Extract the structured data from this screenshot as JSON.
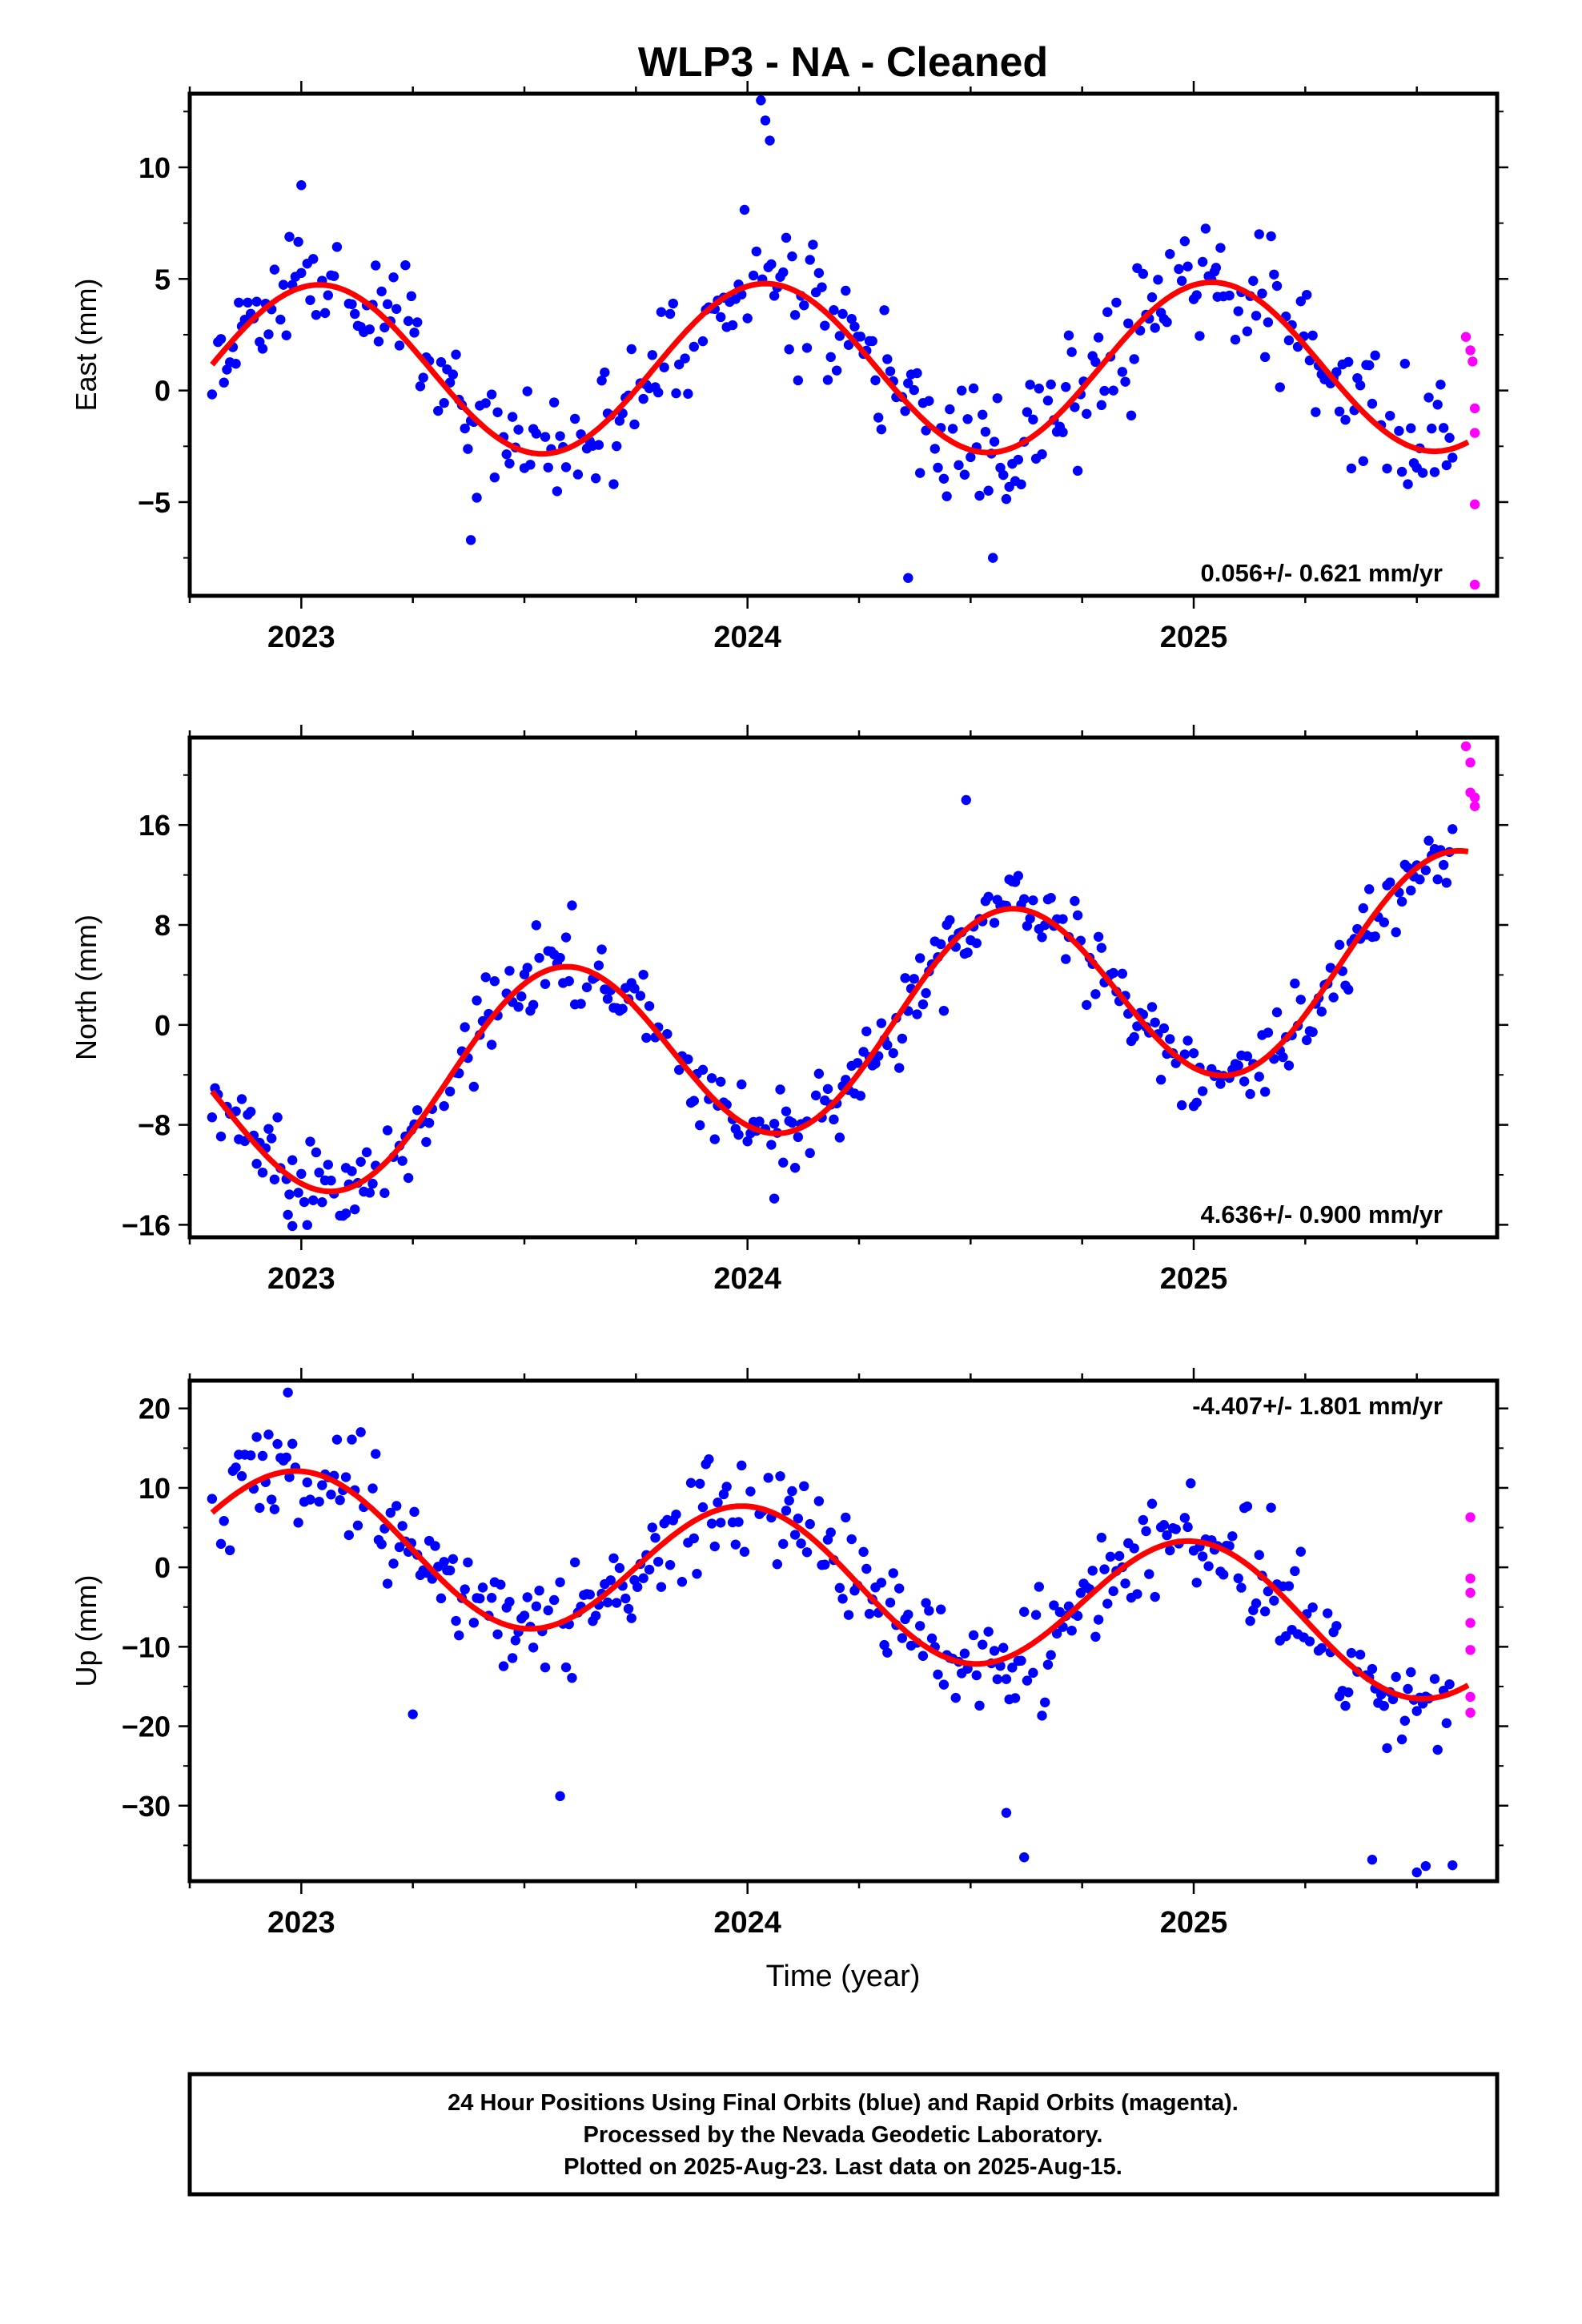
{
  "title": "WLP3  - NA - Cleaned",
  "x_axis_label": "Time (year)",
  "colors": {
    "final_orbits": "#0000ff",
    "rapid_orbits": "#ff00ff",
    "model_fit": "#ff0000",
    "frame": "#000000"
  },
  "footer": {
    "line1": "24 Hour Positions Using Final Orbits (blue) and Rapid Orbits (magenta).",
    "line2": "Processed by the Nevada Geodetic Laboratory.",
    "line3": "Plotted on 2025-Aug-23. Last data on 2025-Aug-15."
  },
  "chart_data": [
    {
      "type": "scatter",
      "ylabel": "East (mm)",
      "rate_label": "0.056+/- 0.621 mm/yr",
      "rate_position": "bottom-right",
      "xlim": [
        2022.75,
        2025.68
      ],
      "ylim": [
        -9.2,
        13.3
      ],
      "x_ticks": [
        2023,
        2024,
        2025
      ],
      "y_ticks": [
        -5,
        0,
        5,
        10
      ],
      "model": {
        "amplitude": 3.8,
        "phase_peak": 0.04,
        "offset": 1.0,
        "rate": 0.056,
        "ref_year": 2024.2
      },
      "samples_per_year": 150,
      "noise": 1.4,
      "seed": 11,
      "outliers": [
        [
          2023.0,
          9.2
        ],
        [
          2024.03,
          13.0
        ],
        [
          2024.04,
          12.1
        ],
        [
          2024.05,
          11.2
        ],
        [
          2024.36,
          -8.4
        ],
        [
          2024.55,
          -7.5
        ],
        [
          2023.38,
          -6.7
        ],
        [
          2025.05,
          5.5
        ]
      ],
      "rapid_points": [
        [
          2025.61,
          2.4
        ],
        [
          2025.62,
          1.8
        ],
        [
          2025.625,
          1.3
        ],
        [
          2025.63,
          -0.8
        ],
        [
          2025.63,
          -1.9
        ],
        [
          2025.63,
          -5.1
        ],
        [
          2025.63,
          -8.7
        ]
      ]
    },
    {
      "type": "scatter",
      "ylabel": "North (mm)",
      "rate_label": "4.636+/- 0.900 mm/yr",
      "rate_position": "bottom-right",
      "xlim": [
        2022.75,
        2025.68
      ],
      "ylim": [
        -17.0,
        23.0
      ],
      "x_ticks": [
        2023,
        2024,
        2025
      ],
      "y_ticks": [
        -16,
        -8,
        0,
        8,
        16
      ],
      "model": {
        "amplitude": 7.8,
        "phase_peak": 0.58,
        "offset": -0.3,
        "rate": 4.636,
        "ref_year": 2024.2
      },
      "samples_per_year": 150,
      "noise": 1.6,
      "seed": 23,
      "outliers": [
        [
          2022.97,
          -15.2
        ],
        [
          2022.98,
          -16.1
        ],
        [
          2023.1,
          -15.1
        ],
        [
          2024.06,
          -13.9
        ],
        [
          2024.49,
          18.0
        ],
        [
          2025.0,
          -6.5
        ]
      ],
      "rapid_points": [
        [
          2025.61,
          22.3
        ],
        [
          2025.62,
          21.0
        ],
        [
          2025.62,
          18.6
        ],
        [
          2025.63,
          18.2
        ],
        [
          2025.63,
          17.5
        ]
      ]
    },
    {
      "type": "scatter",
      "ylabel": "Up (mm)",
      "rate_label": "-4.407+/- 1.801 mm/yr",
      "rate_position": "top-right",
      "xlim": [
        2022.75,
        2025.68
      ],
      "ylim": [
        -39.5,
        23.5
      ],
      "x_ticks": [
        2023,
        2024,
        2025
      ],
      "y_ticks": [
        -30,
        -20,
        -10,
        0,
        10,
        20
      ],
      "model": {
        "amplitude": 8.8,
        "phase_peak": 0.0,
        "offset": -2.0,
        "rate": -4.407,
        "ref_year": 2024.2
      },
      "samples_per_year": 150,
      "noise": 3.2,
      "seed": 37,
      "outliers": [
        [
          2022.97,
          22.0
        ],
        [
          2023.25,
          -18.5
        ],
        [
          2023.58,
          -28.8
        ],
        [
          2024.58,
          -30.9
        ],
        [
          2024.62,
          -36.5
        ],
        [
          2025.4,
          -36.8
        ],
        [
          2025.5,
          -38.4
        ],
        [
          2025.52,
          -37.6
        ],
        [
          2025.58,
          -37.5
        ]
      ],
      "rapid_points": [
        [
          2025.62,
          6.3
        ],
        [
          2025.62,
          -1.4
        ],
        [
          2025.62,
          -3.2
        ],
        [
          2025.62,
          -7.0
        ],
        [
          2025.62,
          -10.4
        ],
        [
          2025.62,
          -16.3
        ],
        [
          2025.62,
          -18.3
        ]
      ]
    }
  ]
}
